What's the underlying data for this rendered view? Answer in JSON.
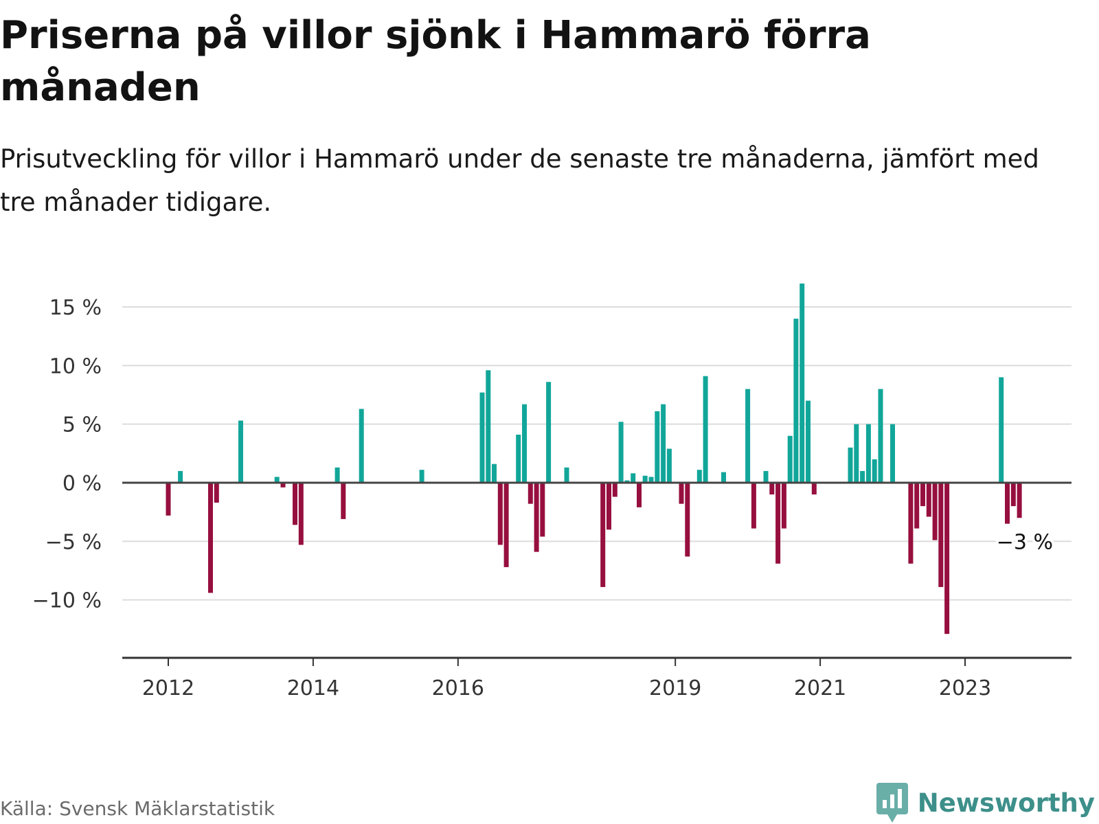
{
  "title": "Priserna på villor sjönk i Hammarö förra månaden",
  "subtitle": "Prisutveckling för villor i Hammarö under de senaste tre månaderna, jämfört med tre månader tidigare.",
  "source": "Källa: Svensk Mäklarstatistik",
  "brand": {
    "name": "Newsworthy",
    "icon": "bar-chart-speech-icon",
    "color": "#3d8f8a"
  },
  "chart_data": {
    "type": "bar",
    "x_unit": "month",
    "x_range": [
      "2011-01",
      "2024-03"
    ],
    "ylim": [
      -15,
      17.5
    ],
    "y_ticks": [
      -10,
      -5,
      0,
      5,
      10,
      15
    ],
    "y_tick_labels": [
      "−10 %",
      "−5 %",
      "0 %",
      "5 %",
      "10 %",
      "15 %"
    ],
    "x_ticks": [
      "2012-01",
      "2014-01",
      "2016-01",
      "2019-01",
      "2021-01",
      "2023-01"
    ],
    "x_tick_labels": [
      "2012",
      "2014",
      "2016",
      "2019",
      "2021",
      "2023"
    ],
    "grid": true,
    "colors": {
      "positive": "#12a69a",
      "negative": "#960f3e"
    },
    "annotation": {
      "text": "−3 %",
      "x": "2024-02",
      "y": -3
    },
    "x": [
      "2012-01",
      "2012-03",
      "2012-08",
      "2012-09",
      "2013-01",
      "2013-07",
      "2013-08",
      "2013-10",
      "2013-11",
      "2014-05",
      "2014-06",
      "2014-09",
      "2015-07",
      "2016-05",
      "2016-06",
      "2016-07",
      "2016-08",
      "2016-09",
      "2016-11",
      "2016-12",
      "2017-01",
      "2017-02",
      "2017-03",
      "2017-04",
      "2017-07",
      "2018-01",
      "2018-02",
      "2018-03",
      "2018-04",
      "2018-05",
      "2018-06",
      "2018-07",
      "2018-08",
      "2018-09",
      "2018-10",
      "2018-11",
      "2018-12",
      "2019-02",
      "2019-03",
      "2019-05",
      "2019-06",
      "2019-09",
      "2020-01",
      "2020-02",
      "2020-04",
      "2020-05",
      "2020-06",
      "2020-07",
      "2020-08",
      "2020-09",
      "2020-10",
      "2020-11",
      "2020-12",
      "2021-06",
      "2021-07",
      "2021-08",
      "2021-09",
      "2021-10",
      "2021-11",
      "2022-01",
      "2022-04",
      "2022-05",
      "2022-06",
      "2022-07",
      "2022-08",
      "2022-09",
      "2022-10",
      "2023-07",
      "2023-08",
      "2023-09",
      "2023-10"
    ],
    "values": [
      -2.8,
      1.0,
      -9.4,
      -1.7,
      5.3,
      0.5,
      -0.4,
      -3.6,
      -5.3,
      1.3,
      -3.1,
      6.3,
      1.1,
      7.7,
      9.6,
      1.6,
      -5.3,
      -7.2,
      4.1,
      6.7,
      -1.8,
      -5.9,
      -4.6,
      8.6,
      1.3,
      -8.9,
      -4.0,
      -1.2,
      5.2,
      0.2,
      0.8,
      -2.1,
      0.6,
      0.5,
      6.1,
      6.7,
      2.9,
      -1.8,
      -6.3,
      1.1,
      9.1,
      0.9,
      8.0,
      -3.9,
      1.0,
      -1.0,
      -6.9,
      -3.9,
      4.0,
      14.0,
      17.0,
      7.0,
      -1.0,
      3.0,
      5.0,
      1.0,
      5.0,
      2.0,
      8.0,
      5.0,
      -6.9,
      -3.9,
      -2.0,
      -2.9,
      -4.9,
      -8.9,
      -12.9,
      9.0,
      -3.5,
      -2.0,
      -3.0
    ]
  }
}
